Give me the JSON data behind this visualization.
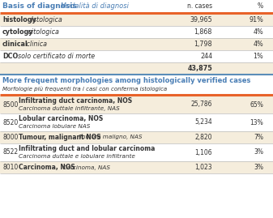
{
  "title1_bold": "Basis of diagnosis",
  "title1_italic": " Modalità di diagnosi",
  "section1_rows": [
    {
      "label_bold": "histology",
      "label_italic": " Istologica",
      "n": "39,965",
      "pct": "91%",
      "bg": "#f5eddc"
    },
    {
      "label_bold": "cytology",
      "label_italic": " citologica",
      "n": "1,868",
      "pct": "4%",
      "bg": "#ffffff"
    },
    {
      "label_bold": "clinical",
      "label_italic": " clinica",
      "n": "1,798",
      "pct": "4%",
      "bg": "#f5eddc"
    },
    {
      "label_bold": "DCO",
      "label_italic": "  solo certificato di morte",
      "n": "244",
      "pct": "1%",
      "bg": "#ffffff"
    }
  ],
  "total_row": {
    "n": "43,875",
    "bg": "#f5eddc"
  },
  "title2_bold": "More frequent morphologies among histologically verified cases",
  "title2_italic": "Morfologie più frequenti tra i casi con conferma istologica",
  "section2_rows": [
    {
      "code": "8500",
      "label_bold": "Infiltrating duct carcinoma, NOS",
      "label_italic": "Carcinoma duttale infiltrante, NAS",
      "n": "25,786",
      "pct": "65%",
      "bg": "#f5eddc",
      "two_line": true
    },
    {
      "code": "8520",
      "label_bold": "Lobular carcinoma, NOS",
      "label_italic": "Carcinoma lobulare NAS",
      "n": "5,234",
      "pct": "13%",
      "bg": "#ffffff",
      "two_line": true
    },
    {
      "code": "8000",
      "label_bold": "Tumour, malignant NOS",
      "label_italic": " Tumore maligno, NAS",
      "n": "2,820",
      "pct": "7%",
      "bg": "#f5eddc",
      "two_line": false
    },
    {
      "code": "8522",
      "label_bold": "Infiltrating duct and lobular carcinoma",
      "label_italic": "Carcinoma duttale e lobulare infiltrante",
      "n": "1,106",
      "pct": "3%",
      "bg": "#ffffff",
      "two_line": true
    },
    {
      "code": "8010",
      "label_bold": "Carcinoma, NOS",
      "label_italic": " Carcinoma, NAS",
      "n": "1,023",
      "pct": "3%",
      "bg": "#f5eddc",
      "two_line": false
    }
  ],
  "orange_color": "#e8632a",
  "blue_color": "#5b8db8",
  "text_color": "#333333",
  "title_color": "#4a7eb5",
  "bg_light": "#f5eddc",
  "bg_white": "#ffffff",
  "bold_offsets": {
    "histology": 33,
    "cytology": 29,
    "clinical": 27,
    "DCO": 14
  }
}
